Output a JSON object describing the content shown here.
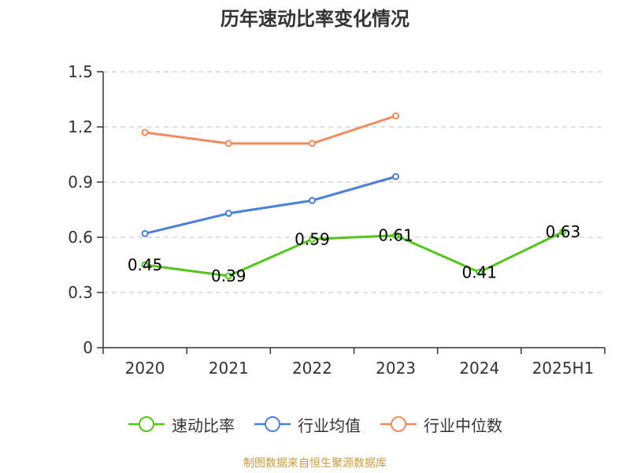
{
  "title": "历年速动比率变化情况",
  "source": "制图数据来自恒生聚源数据库",
  "chart_data": {
    "type": "line",
    "title": "历年速动比率变化情况",
    "categories": [
      "2020",
      "2021",
      "2022",
      "2023",
      "2024",
      "2025H1"
    ],
    "y_ticks": [
      "0",
      "0.3",
      "0.6",
      "0.9",
      "1.2",
      "1.5"
    ],
    "ylim": [
      0,
      1.5
    ],
    "grid": true,
    "legend_position": "bottom",
    "series": [
      {
        "name": "速动比率",
        "color": "#52c41a",
        "values": [
          0.45,
          0.39,
          0.59,
          0.61,
          0.41,
          0.63
        ],
        "labels": [
          "0.45",
          "0.39",
          "0.59",
          "0.61",
          "0.41",
          "0.63"
        ],
        "show_labels": true
      },
      {
        "name": "行业均值",
        "color": "#4a7fdc",
        "values": [
          0.62,
          0.73,
          0.8,
          0.93,
          null,
          null
        ],
        "show_labels": false
      },
      {
        "name": "行业中位数",
        "color": "#f5895a",
        "values": [
          1.17,
          1.11,
          1.11,
          1.26,
          null,
          null
        ],
        "show_labels": false
      }
    ]
  }
}
